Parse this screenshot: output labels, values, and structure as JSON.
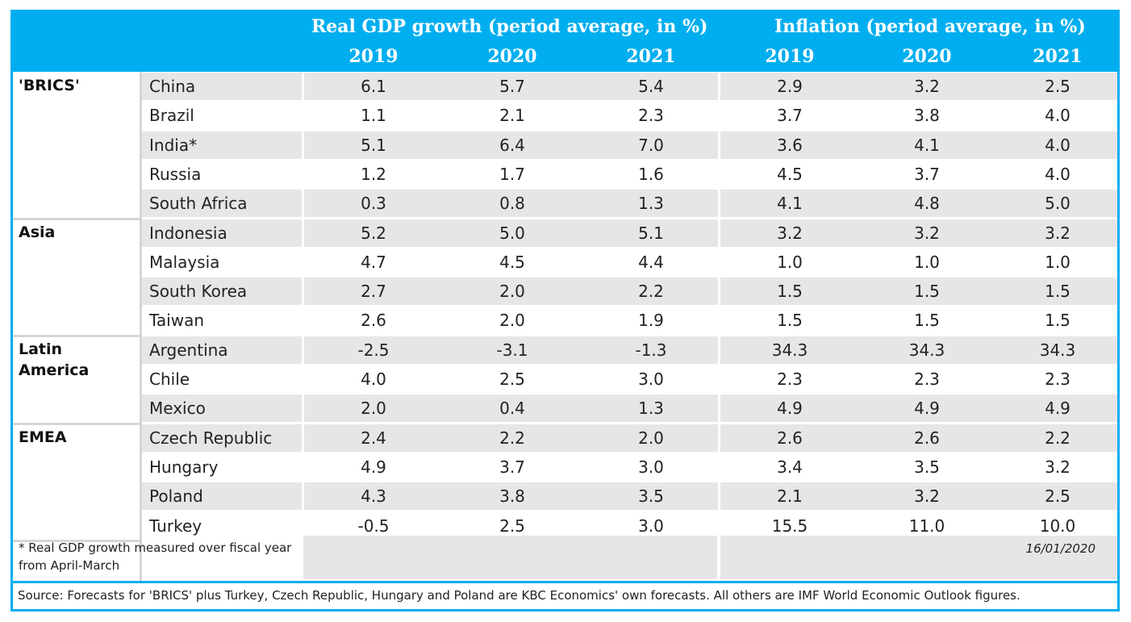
{
  "header": {
    "gdp_title": "Real GDP growth (period average, in %)",
    "infl_title": "Inflation (period average, in %)",
    "gdp_years": [
      "2019",
      "2020",
      "2021"
    ],
    "infl_years": [
      "2019",
      "2020",
      "2021"
    ]
  },
  "groups": [
    {
      "name": "'BRICS'",
      "rows": [
        {
          "country": "China",
          "gdp": [
            "6.1",
            "5.7",
            "5.4"
          ],
          "inflation": [
            "2.9",
            "3.2",
            "2.5"
          ]
        },
        {
          "country": "Brazil",
          "gdp": [
            "1.1",
            "2.1",
            "2.3"
          ],
          "inflation": [
            "3.7",
            "3.8",
            "4.0"
          ]
        },
        {
          "country": "India*",
          "gdp": [
            "5.1",
            "6.4",
            "7.0"
          ],
          "inflation": [
            "3.6",
            "4.1",
            "4.0"
          ]
        },
        {
          "country": "Russia",
          "gdp": [
            "1.2",
            "1.7",
            "1.6"
          ],
          "inflation": [
            "4.5",
            "3.7",
            "4.0"
          ]
        },
        {
          "country": "South Africa",
          "gdp": [
            "0.3",
            "0.8",
            "1.3"
          ],
          "inflation": [
            "4.1",
            "4.8",
            "5.0"
          ]
        }
      ]
    },
    {
      "name": "Asia",
      "rows": [
        {
          "country": "Indonesia",
          "gdp": [
            "5.2",
            "5.0",
            "5.1"
          ],
          "inflation": [
            "3.2",
            "3.2",
            "3.2"
          ]
        },
        {
          "country": "Malaysia",
          "gdp": [
            "4.7",
            "4.5",
            "4.4"
          ],
          "inflation": [
            "1.0",
            "1.0",
            "1.0"
          ]
        },
        {
          "country": "South Korea",
          "gdp": [
            "2.7",
            "2.0",
            "2.2"
          ],
          "inflation": [
            "1.5",
            "1.5",
            "1.5"
          ]
        },
        {
          "country": "Taiwan",
          "gdp": [
            "2.6",
            "2.0",
            "1.9"
          ],
          "inflation": [
            "1.5",
            "1.5",
            "1.5"
          ]
        }
      ]
    },
    {
      "name": "Latin America",
      "rows": [
        {
          "country": "Argentina",
          "gdp": [
            "-2.5",
            "-3.1",
            "-1.3"
          ],
          "inflation": [
            "34.3",
            "34.3",
            "34.3"
          ]
        },
        {
          "country": "Chile",
          "gdp": [
            "4.0",
            "2.5",
            "3.0"
          ],
          "inflation": [
            "2.3",
            "2.3",
            "2.3"
          ]
        },
        {
          "country": "Mexico",
          "gdp": [
            "2.0",
            "0.4",
            "1.3"
          ],
          "inflation": [
            "4.9",
            "4.9",
            "4.9"
          ]
        }
      ]
    },
    {
      "name": "EMEA",
      "rows": [
        {
          "country": "Czech Republic",
          "gdp": [
            "2.4",
            "2.2",
            "2.0"
          ],
          "inflation": [
            "2.6",
            "2.6",
            "2.2"
          ]
        },
        {
          "country": "Hungary",
          "gdp": [
            "4.9",
            "3.7",
            "3.0"
          ],
          "inflation": [
            "3.4",
            "3.5",
            "3.2"
          ]
        },
        {
          "country": "Poland",
          "gdp": [
            "4.3",
            "3.8",
            "3.5"
          ],
          "inflation": [
            "2.1",
            "3.2",
            "2.5"
          ]
        },
        {
          "country": "Turkey",
          "gdp": [
            "-0.5",
            "2.5",
            "3.0"
          ],
          "inflation": [
            "15.5",
            "11.0",
            "10.0"
          ]
        }
      ]
    }
  ],
  "footnote": "* Real GDP growth measured over fiscal year from April-March",
  "date": "16/01/2020",
  "source": "Source: Forecasts for 'BRICS' plus Turkey, Czech Republic, Hungary and Poland are KBC Economics' own forecasts. All others are IMF World Economic Outlook figures.",
  "colors": {
    "accent": "#00aeef",
    "shaded_row": "#e6e6e6",
    "plain_row": "#ffffff"
  }
}
